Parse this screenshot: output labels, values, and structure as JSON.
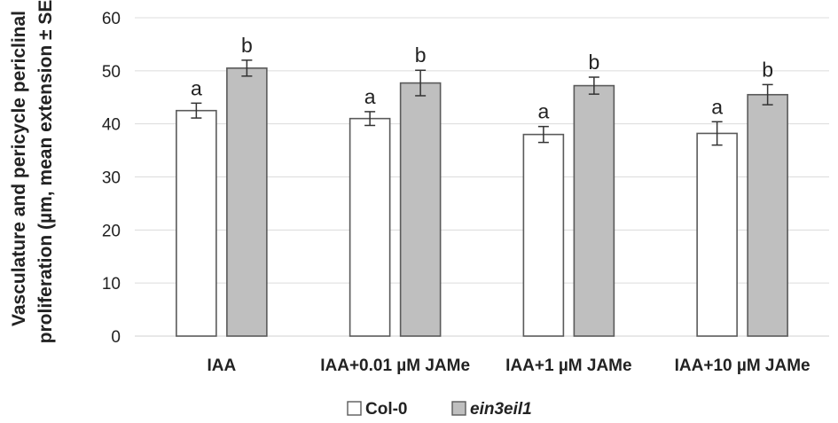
{
  "chart_data": {
    "type": "bar",
    "title": "",
    "xlabel": "",
    "ylabel_lines": [
      "Vasculature and pericycle periclinal",
      "proliferation (µm, mean extension ± SE)"
    ],
    "ylim": [
      0,
      60
    ],
    "yticks": [
      0,
      10,
      20,
      30,
      40,
      50,
      60
    ],
    "grid": true,
    "legend_position": "bottom",
    "categories": [
      "IAA",
      "IAA+0.01 µM JAMe",
      "IAA+1 µM JAMe",
      "IAA+10 µM JAMe"
    ],
    "series": [
      {
        "name": "Col-0",
        "color": "#ffffff",
        "values": [
          42.5,
          41.0,
          38.0,
          38.2
        ],
        "errors": [
          1.4,
          1.3,
          1.5,
          2.2
        ],
        "labels": [
          "a",
          "a",
          "a",
          "a"
        ]
      },
      {
        "name": "ein3eil1",
        "name_italic": true,
        "color": "#bfbfbf",
        "values": [
          50.5,
          47.7,
          47.2,
          45.5
        ],
        "errors": [
          1.5,
          2.4,
          1.6,
          1.9
        ],
        "labels": [
          "b",
          "b",
          "b",
          "b"
        ]
      }
    ]
  }
}
